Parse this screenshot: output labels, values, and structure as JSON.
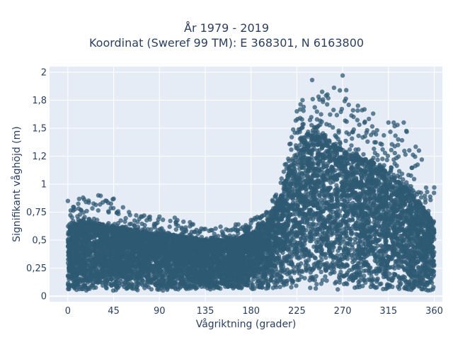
{
  "chart_data": {
    "type": "scatter",
    "title_line1": "År 1979 - 2019",
    "title_line2": "Koordinat (Sweref 99 TM): E 368301, N 6163800",
    "xlabel": "Vågriktning (grader)",
    "ylabel": "Signifikant våghöjd (m)",
    "xlim": [
      -18,
      368
    ],
    "ylim": [
      -0.05,
      2.05
    ],
    "x_ticks": [
      0,
      45,
      90,
      135,
      180,
      225,
      270,
      315,
      360
    ],
    "x_tick_labels": [
      "0",
      "45",
      "90",
      "135",
      "180",
      "225",
      "270",
      "315",
      "360"
    ],
    "y_ticks": [
      0,
      0.25,
      0.5,
      0.75,
      1,
      1.25,
      1.5,
      1.75,
      2
    ],
    "y_tick_labels": [
      "0",
      "0,25",
      "0,5",
      "0,75",
      "1",
      "1,2",
      "1,5",
      "1,8",
      "2"
    ],
    "grid": true,
    "series": [
      {
        "color": "#2f5a73",
        "envelope": [
          {
            "x": 0,
            "y_min": 0.05,
            "y_max": 0.62,
            "y_outlier": 0.85
          },
          {
            "x": 15,
            "y_min": 0.05,
            "y_max": 0.68,
            "y_outlier": 0.88
          },
          {
            "x": 30,
            "y_min": 0.05,
            "y_max": 0.65,
            "y_outlier": 0.9
          },
          {
            "x": 45,
            "y_min": 0.05,
            "y_max": 0.62,
            "y_outlier": 0.87
          },
          {
            "x": 60,
            "y_min": 0.05,
            "y_max": 0.6,
            "y_outlier": 0.75
          },
          {
            "x": 75,
            "y_min": 0.05,
            "y_max": 0.58,
            "y_outlier": 0.72
          },
          {
            "x": 90,
            "y_min": 0.05,
            "y_max": 0.56,
            "y_outlier": 0.71
          },
          {
            "x": 105,
            "y_min": 0.05,
            "y_max": 0.55,
            "y_outlier": 0.7
          },
          {
            "x": 120,
            "y_min": 0.06,
            "y_max": 0.52,
            "y_outlier": 0.66
          },
          {
            "x": 135,
            "y_min": 0.06,
            "y_max": 0.5,
            "y_outlier": 0.6
          },
          {
            "x": 150,
            "y_min": 0.06,
            "y_max": 0.5,
            "y_outlier": 0.62
          },
          {
            "x": 165,
            "y_min": 0.06,
            "y_max": 0.52,
            "y_outlier": 0.64
          },
          {
            "x": 180,
            "y_min": 0.06,
            "y_max": 0.56,
            "y_outlier": 0.68
          },
          {
            "x": 195,
            "y_min": 0.06,
            "y_max": 0.65,
            "y_outlier": 0.75
          },
          {
            "x": 210,
            "y_min": 0.06,
            "y_max": 0.9,
            "y_outlier": 1.05
          },
          {
            "x": 225,
            "y_min": 0.06,
            "y_max": 1.35,
            "y_outlier": 1.65
          },
          {
            "x": 240,
            "y_min": 0.06,
            "y_max": 1.5,
            "y_outlier": 1.93
          },
          {
            "x": 255,
            "y_min": 0.06,
            "y_max": 1.4,
            "y_outlier": 1.8
          },
          {
            "x": 270,
            "y_min": 0.05,
            "y_max": 1.32,
            "y_outlier": 1.97
          },
          {
            "x": 285,
            "y_min": 0.05,
            "y_max": 1.25,
            "y_outlier": 1.7
          },
          {
            "x": 300,
            "y_min": 0.05,
            "y_max": 1.2,
            "y_outlier": 1.63
          },
          {
            "x": 315,
            "y_min": 0.05,
            "y_max": 1.1,
            "y_outlier": 1.55
          },
          {
            "x": 330,
            "y_min": 0.05,
            "y_max": 1.0,
            "y_outlier": 1.55
          },
          {
            "x": 345,
            "y_min": 0.05,
            "y_max": 0.85,
            "y_outlier": 1.3
          },
          {
            "x": 360,
            "y_min": 0.05,
            "y_max": 0.65,
            "y_outlier": 0.97
          }
        ]
      }
    ]
  }
}
